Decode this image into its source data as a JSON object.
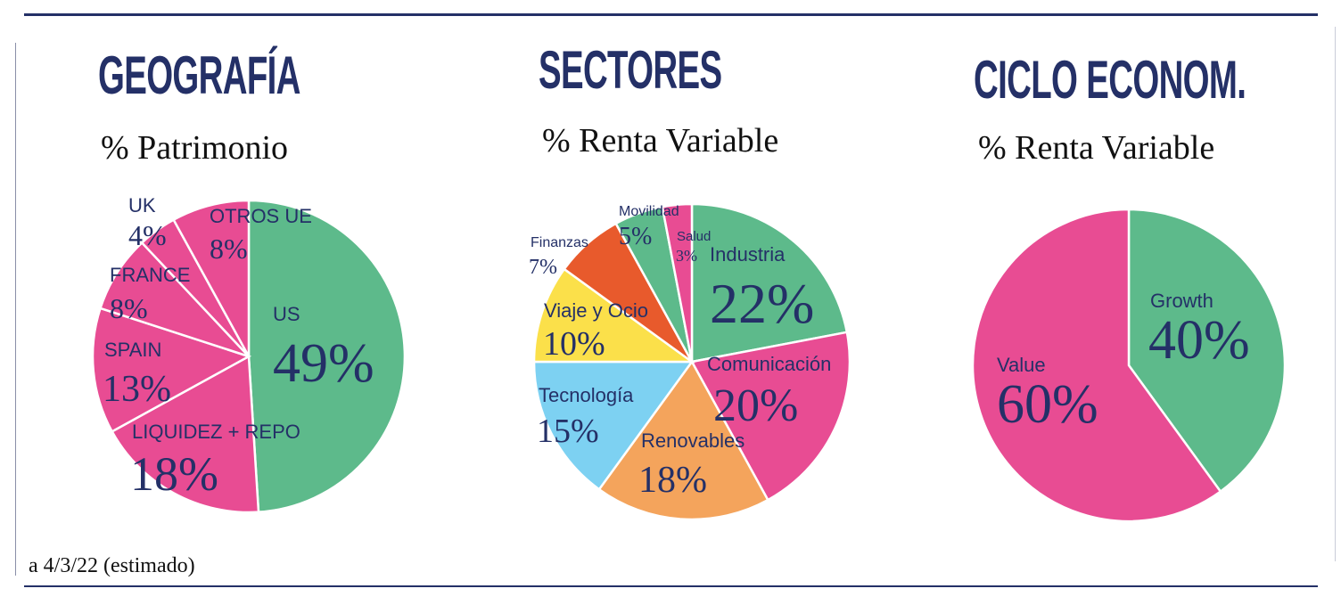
{
  "colors": {
    "navy": "#243067",
    "green": "#5dba8b",
    "pink": "#e84c93",
    "yellow": "#fbe04a",
    "orange": "#e85a2c",
    "light_orange": "#f4a45c",
    "light_blue": "#7dd1f2",
    "white": "#ffffff"
  },
  "footnote": "a 4/3/22 (estimado)",
  "chart_data": [
    {
      "type": "pie",
      "title": "GEOGRAFÍA",
      "subtitle": "% Patrimonio",
      "slices": [
        {
          "label": "US",
          "value": 49,
          "value_text": "49%",
          "color": "#5dba8b"
        },
        {
          "label": "LIQUIDEZ + REPO",
          "value": 18,
          "value_text": "18%",
          "color": "#e84c93"
        },
        {
          "label": "SPAIN",
          "value": 13,
          "value_text": "13%",
          "color": "#e84c93"
        },
        {
          "label": "FRANCE",
          "value": 8,
          "value_text": "8%",
          "color": "#e84c93"
        },
        {
          "label": "UK",
          "value": 4,
          "value_text": "4%",
          "color": "#e84c93"
        },
        {
          "label": "OTROS UE",
          "value": 8,
          "value_text": "8%",
          "color": "#e84c93"
        }
      ]
    },
    {
      "type": "pie",
      "title": "SECTORES",
      "subtitle": "% Renta Variable",
      "slices": [
        {
          "label": "Industria",
          "value": 22,
          "value_text": "22%",
          "color": "#5dba8b"
        },
        {
          "label": "Comunicación",
          "value": 20,
          "value_text": "20%",
          "color": "#e84c93"
        },
        {
          "label": "Renovables",
          "value": 18,
          "value_text": "18%",
          "color": "#f4a45c"
        },
        {
          "label": "Tecnología",
          "value": 15,
          "value_text": "15%",
          "color": "#7dd1f2"
        },
        {
          "label": "Viaje y Ocio",
          "value": 10,
          "value_text": "10%",
          "color": "#fbe04a"
        },
        {
          "label": "Finanzas",
          "value": 7,
          "value_text": "7%",
          "color": "#e85a2c"
        },
        {
          "label": "Movilidad",
          "value": 5,
          "value_text": "5%",
          "color": "#5dba8b"
        },
        {
          "label": "Salud",
          "value": 3,
          "value_text": "3%",
          "color": "#e84c93"
        }
      ]
    },
    {
      "type": "pie",
      "title": "CICLO ECONOM.",
      "subtitle": "% Renta Variable",
      "slices": [
        {
          "label": "Growth",
          "value": 40,
          "value_text": "40%",
          "color": "#5dba8b"
        },
        {
          "label": "Value",
          "value": 60,
          "value_text": "60%",
          "color": "#e84c93"
        }
      ]
    }
  ]
}
